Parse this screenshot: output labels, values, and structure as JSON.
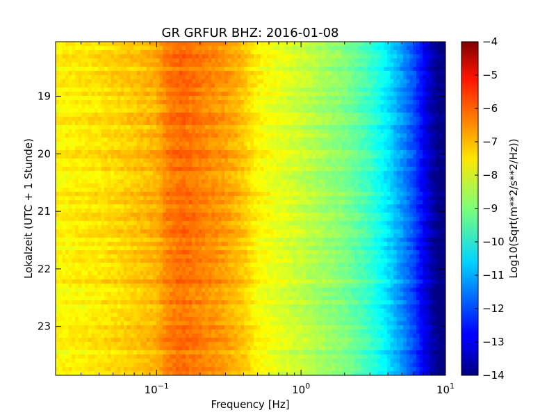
{
  "chart_data": {
    "type": "heatmap",
    "title": "GR GRFUR BHZ: 2016-01-08",
    "xlabel": "Frequency [Hz]",
    "ylabel": "Lokalzeit (UTC + 1 Stunde)",
    "colorbar_label": "Log10(Sqrt(m**2/s**2/Hz))",
    "x_scale": "log",
    "xlim": [
      0.02,
      10
    ],
    "x_ticks": [
      {
        "value": 0.1,
        "base": "10",
        "exp": "−1"
      },
      {
        "value": 1,
        "base": "10",
        "exp": "0"
      },
      {
        "value": 10,
        "base": "10",
        "exp": "1"
      }
    ],
    "ylim": [
      18.05,
      23.85
    ],
    "y_inverted": true,
    "y_ticks": [
      "19",
      "20",
      "21",
      "22",
      "23"
    ],
    "y_tick_values": [
      19,
      20,
      21,
      22,
      23
    ],
    "colorbar_range": [
      -14,
      -4
    ],
    "colorbar_ticks": [
      "−4",
      "−5",
      "−6",
      "−7",
      "−8",
      "−9",
      "−10",
      "−11",
      "−12",
      "−13",
      "−14"
    ],
    "colorbar_tick_values": [
      -4,
      -5,
      -6,
      -7,
      -8,
      -9,
      -10,
      -11,
      -12,
      -13,
      -14
    ],
    "colormap": "jet",
    "spectrum_profile": {
      "frequency_hz": [
        0.02,
        0.04,
        0.06,
        0.1,
        0.12,
        0.15,
        0.2,
        0.3,
        0.4,
        0.5,
        0.7,
        1.0,
        2.0,
        3.0,
        4.0,
        5.0,
        6.0,
        7.0,
        8.0,
        9.0,
        10.0
      ],
      "log10_amplitude": [
        -7.7,
        -7.5,
        -7.3,
        -7.0,
        -6.5,
        -6.3,
        -6.5,
        -6.8,
        -7.2,
        -7.7,
        -8.0,
        -8.3,
        -9.0,
        -9.7,
        -10.5,
        -11.3,
        -12.0,
        -12.8,
        -13.5,
        -14.0,
        -14.0
      ]
    }
  }
}
